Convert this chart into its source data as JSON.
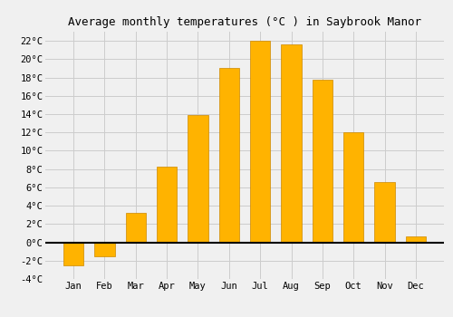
{
  "title": "Average monthly temperatures (°C ) in Saybrook Manor",
  "months": [
    "Jan",
    "Feb",
    "Mar",
    "Apr",
    "May",
    "Jun",
    "Jul",
    "Aug",
    "Sep",
    "Oct",
    "Nov",
    "Dec"
  ],
  "values": [
    -2.5,
    -1.5,
    3.2,
    8.3,
    13.9,
    19.0,
    22.0,
    21.6,
    17.8,
    12.0,
    6.6,
    0.6
  ],
  "bar_color_top": "#FFB700",
  "bar_color_bottom": "#FF9900",
  "bar_edge_color": "#CC8800",
  "ylim": [
    -4,
    23
  ],
  "yticks": [
    -4,
    -2,
    0,
    2,
    4,
    6,
    8,
    10,
    12,
    14,
    16,
    18,
    20,
    22
  ],
  "grid_color": "#cccccc",
  "background_color": "#f0f0f0",
  "title_fontsize": 9,
  "tick_fontsize": 7.5,
  "bar_width": 0.65
}
